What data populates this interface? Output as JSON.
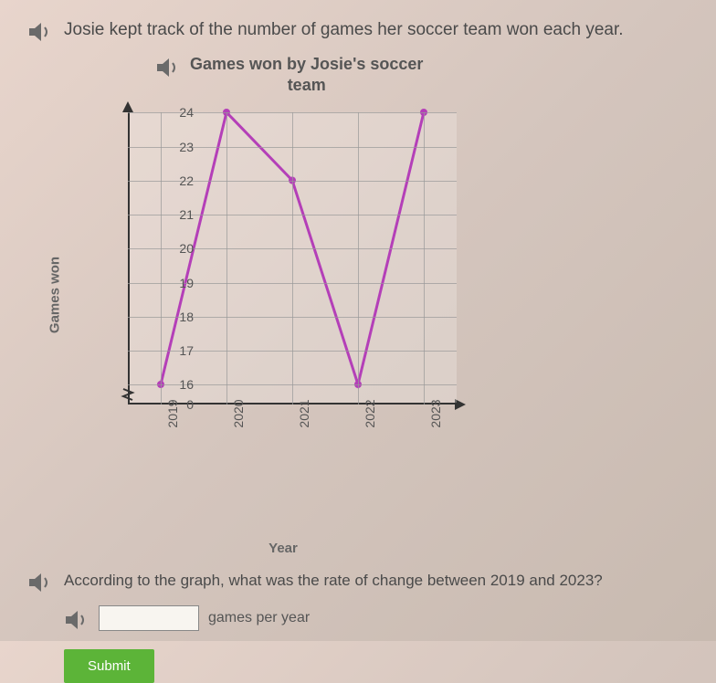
{
  "question_intro": "Josie kept track of the number of games her soccer team won each year.",
  "chart": {
    "type": "line",
    "title_line1": "Games won by Josie's soccer",
    "title_line2": "team",
    "xlabel": "Year",
    "ylabel": "Games won",
    "x_categories": [
      "2019",
      "2020",
      "2021",
      "2022",
      "2023"
    ],
    "y_values": [
      16,
      24,
      22,
      16,
      24
    ],
    "yticks": [
      0,
      16,
      17,
      18,
      19,
      20,
      21,
      22,
      23,
      24
    ],
    "ylim_display_min": 16,
    "ylim_display_max": 24,
    "line_color": "#b43fb8",
    "marker_color": "#b43fb8",
    "line_width": 3,
    "marker_radius": 4,
    "grid_color": "#999999",
    "axis_color": "#333333",
    "background_color": "rgba(245,240,235,0.3)",
    "tick_fontsize": 14,
    "label_fontsize": 15,
    "title_fontsize": 18
  },
  "question_prompt": "According to the graph, what was the rate of change between 2019 and 2023?",
  "answer": {
    "value": "",
    "units": "games per year"
  },
  "submit_label": "Submit",
  "speaker_icon_color": "#6a6a6a"
}
